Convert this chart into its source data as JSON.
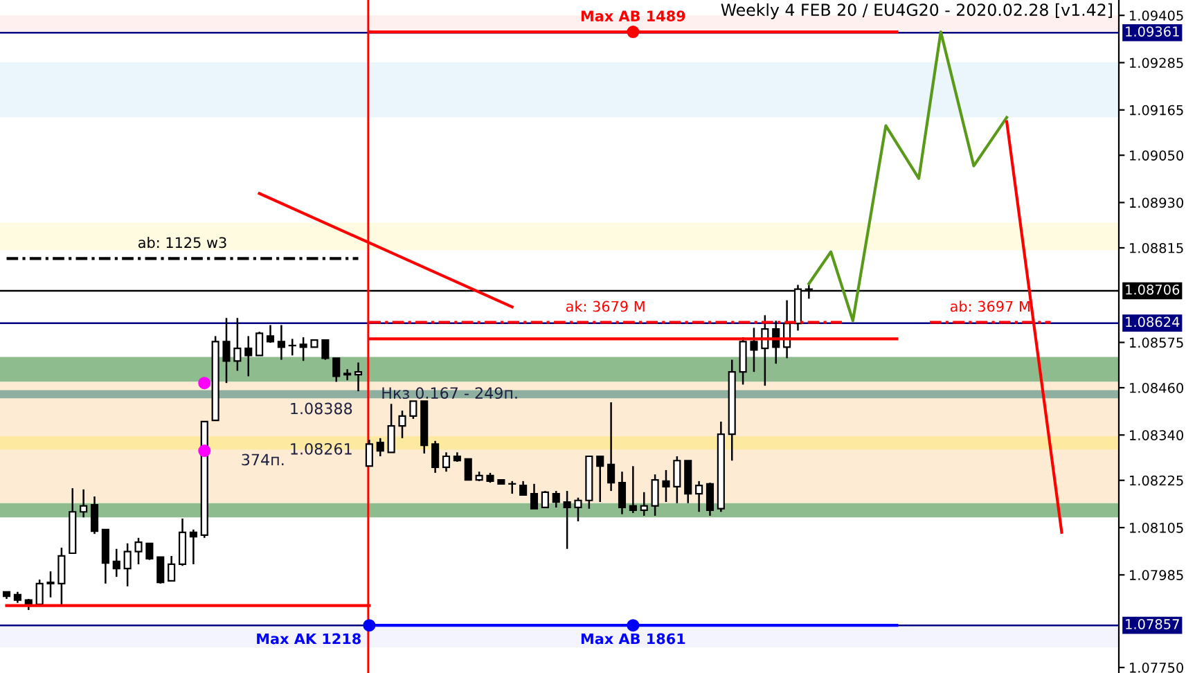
{
  "chart_data": {
    "type": "candlestick",
    "title": "Weekly 4 FEB 20 / EU4G20 - 2020.02.28 [v1.42]",
    "color": "#000000",
    "categories": [
      null,
      null,
      null,
      null,
      null,
      null,
      null,
      null,
      null,
      null,
      null,
      null,
      null,
      null,
      null,
      null,
      null,
      null,
      null,
      null,
      null,
      null,
      null,
      null,
      null,
      null,
      null,
      null,
      null,
      null,
      null,
      null,
      null,
      null,
      null,
      null,
      null,
      null,
      null,
      null,
      null,
      null,
      null,
      null,
      null,
      null,
      null,
      null,
      null,
      null,
      null,
      null,
      null,
      null,
      null,
      null,
      null,
      null,
      null,
      null,
      null,
      null,
      null,
      null,
      null,
      null,
      null,
      null,
      null,
      null,
      null,
      null,
      null,
      null,
      null,
      null,
      null,
      null,
      null,
      null,
      null,
      null,
      null,
      null,
      null,
      null,
      null,
      null,
      null,
      null,
      null,
      null,
      null,
      null,
      null,
      null,
      null,
      null,
      null,
      null,
      null,
      null
    ],
    "ohlc": [
      [
        1.07942,
        1.07942,
        1.07924,
        1.07931
      ],
      [
        1.07935,
        1.07942,
        1.07914,
        1.07921
      ],
      [
        1.07921,
        1.07924,
        1.07896,
        1.07907
      ],
      [
        1.0791,
        1.07973,
        1.0791,
        1.07963
      ],
      [
        1.07966,
        1.07994,
        1.07928,
        1.07963
      ],
      [
        1.07963,
        1.08054,
        1.07907,
        1.08033
      ],
      [
        1.0804,
        1.08205,
        1.0804,
        1.08145
      ],
      [
        1.08145,
        1.08202,
        1.08131,
        1.0816
      ],
      [
        1.08163,
        1.08184,
        1.08089,
        1.08096
      ],
      [
        1.081,
        1.081,
        1.07963,
        1.08015
      ],
      [
        1.08019,
        1.08051,
        1.0798,
        1.08001
      ],
      [
        1.08001,
        1.08065,
        1.07956,
        1.08044
      ],
      [
        1.08044,
        1.08079,
        1.08012,
        1.08068
      ],
      [
        1.08065,
        1.08065,
        1.08023,
        1.08026
      ],
      [
        1.0803,
        1.0803,
        1.07963,
        1.07966
      ],
      [
        1.0797,
        1.08033,
        1.0797,
        1.08012
      ],
      [
        1.08012,
        1.08128,
        1.08008,
        1.08093
      ],
      [
        1.08093,
        1.081,
        1.08012,
        1.08082
      ],
      [
        1.08086,
        1.08374,
        1.08079,
        1.08374
      ],
      [
        1.08377,
        1.08591,
        1.08377,
        1.08577
      ],
      [
        1.08577,
        1.08637,
        1.08472,
        1.08528
      ],
      [
        1.08528,
        1.08637,
        1.08503,
        1.0856
      ],
      [
        1.0856,
        1.08591,
        1.08489,
        1.08542
      ],
      [
        1.08542,
        1.08602,
        1.08542,
        1.08598
      ],
      [
        1.08591,
        1.08619,
        1.08574,
        1.08577
      ],
      [
        1.08577,
        1.08619,
        1.08531,
        1.08563
      ],
      [
        1.08567,
        1.08584,
        1.08542,
        1.08567
      ],
      [
        1.0857,
        1.08588,
        1.08528,
        1.08563
      ],
      [
        1.08563,
        1.08581,
        1.08563,
        1.08581
      ],
      [
        1.08581,
        1.08581,
        1.08531,
        1.08535
      ],
      [
        1.08535,
        1.08535,
        1.08475,
        1.08489
      ],
      [
        1.08496,
        1.08507,
        1.08479,
        1.08493
      ],
      [
        1.08493,
        1.08524,
        1.08451,
        1.085
      ],
      [
        1.08261,
        1.08328,
        1.08261,
        1.08317
      ],
      [
        1.08321,
        1.08332,
        1.08286,
        1.083
      ],
      [
        1.08296,
        1.08419,
        1.08296,
        1.08363
      ],
      [
        1.08363,
        1.08402,
        1.08332,
        1.08388
      ],
      [
        1.08388,
        1.08426,
        1.08381,
        1.08426
      ],
      [
        1.08426,
        1.08426,
        1.08293,
        1.08314
      ],
      [
        1.08317,
        1.08325,
        1.08244,
        1.08258
      ],
      [
        1.08258,
        1.08296,
        1.08247,
        1.08286
      ],
      [
        1.08286,
        1.08296,
        1.08272,
        1.08275
      ],
      [
        1.08279,
        1.08279,
        1.08226,
        1.08226
      ],
      [
        1.08226,
        1.08247,
        1.08223,
        1.08237
      ],
      [
        1.08237,
        1.08244,
        1.08219,
        1.08223
      ],
      [
        1.08226,
        1.08226,
        1.08216,
        1.08216
      ],
      [
        1.08216,
        1.08223,
        1.08191,
        1.08216
      ],
      [
        1.08212,
        1.08223,
        1.08188,
        1.08188
      ],
      [
        1.08191,
        1.08216,
        1.08153,
        1.08153
      ],
      [
        1.08156,
        1.08198,
        1.08156,
        1.08195
      ],
      [
        1.08191,
        1.08198,
        1.08156,
        1.0817
      ],
      [
        1.0817,
        1.08198,
        1.08051,
        1.08156
      ],
      [
        1.08156,
        1.08181,
        1.08121,
        1.08174
      ],
      [
        1.08174,
        1.08286,
        1.08153,
        1.08286
      ],
      [
        1.08286,
        1.08286,
        1.0817,
        1.08261
      ],
      [
        1.08265,
        1.08423,
        1.08198,
        1.08219
      ],
      [
        1.08219,
        1.08247,
        1.08139,
        1.08156
      ],
      [
        1.0816,
        1.08261,
        1.08142,
        1.08149
      ],
      [
        1.08149,
        1.08195,
        1.08135,
        1.0816
      ],
      [
        1.0816,
        1.0824,
        1.08135,
        1.08226
      ],
      [
        1.08223,
        1.08251,
        1.0817,
        1.08209
      ],
      [
        1.08209,
        1.08286,
        1.08167,
        1.08275
      ],
      [
        1.08275,
        1.08275,
        1.08167,
        1.08191
      ],
      [
        1.08191,
        1.08223,
        1.08145,
        1.08212
      ],
      [
        1.08216,
        1.08219,
        1.08135,
        1.08149
      ],
      [
        1.08153,
        1.08374,
        1.08145,
        1.08342
      ],
      [
        1.08342,
        1.08531,
        1.08275,
        1.085
      ],
      [
        1.085,
        1.08588,
        1.08468,
        1.08577
      ],
      [
        1.08577,
        1.08612,
        1.085,
        1.08556
      ],
      [
        1.0856,
        1.08644,
        1.08465,
        1.08609
      ],
      [
        1.08609,
        1.0863,
        1.08521,
        1.08563
      ],
      [
        1.08563,
        1.08682,
        1.08535,
        1.08623
      ],
      [
        1.08623,
        1.08721,
        1.08605,
        1.0871
      ],
      [
        1.0871,
        1.08724,
        1.08686,
        1.0871
      ],
      null,
      null,
      null,
      null,
      null,
      null,
      null,
      null,
      null,
      null,
      null,
      null,
      null,
      null,
      null,
      null,
      null,
      null,
      null,
      null,
      null,
      null,
      null,
      null,
      null,
      null,
      null,
      null
    ],
    "ylim": [
      1.07736,
      1.09444
    ],
    "yticks": [
      {
        "value": 1.09405,
        "label": "1.09405"
      },
      {
        "value": 1.09285,
        "label": "1.09285"
      },
      {
        "value": 1.09165,
        "label": "1.09165"
      },
      {
        "value": 1.0905,
        "label": "1.09050"
      },
      {
        "value": 1.0893,
        "label": "1.08930"
      },
      {
        "value": 1.08815,
        "label": "1.08815"
      },
      {
        "value": 1.08575,
        "label": "1.08575"
      },
      {
        "value": 1.0846,
        "label": "1.08460"
      },
      {
        "value": 1.0834,
        "label": "1.08340"
      },
      {
        "value": 1.08225,
        "label": "1.08225"
      },
      {
        "value": 1.08105,
        "label": "1.08105"
      },
      {
        "value": 1.07985,
        "label": "1.07985"
      },
      {
        "value": 1.0775,
        "label": "1.07750"
      }
    ],
    "tick_labels": "y",
    "grid": false,
    "bands": [
      {
        "axis": "y",
        "from": 1.09146,
        "to": 1.09286,
        "color": "#eaf6fb"
      },
      {
        "axis": "y",
        "from": 1.08809,
        "to": 1.08879,
        "color": "#fffbe0"
      },
      {
        "axis": "y",
        "from": 1.08475,
        "to": 1.08538,
        "color": "#8fbc8f"
      },
      {
        "axis": "y",
        "from": 1.08167,
        "to": 1.08475,
        "color": "#fdebd3"
      },
      {
        "axis": "y",
        "from": 1.08433,
        "to": 1.08454,
        "color": "#8fb0a0"
      },
      {
        "axis": "y",
        "from": 1.08303,
        "to": 1.08337,
        "color": "#fde9a0"
      },
      {
        "axis": "y",
        "from": 1.08131,
        "to": 1.08167,
        "color": "#8fbc8f"
      },
      {
        "axis": "y",
        "from": 1.09363,
        "to": 1.09405,
        "color": "#fff0f0"
      },
      {
        "axis": "y",
        "from": 1.07801,
        "to": 1.07857,
        "color": "#f4f4ff"
      }
    ],
    "ref_lines": [
      {
        "axis": "y",
        "value": 1.09361,
        "label": "1.09361",
        "color": "#000080",
        "line_style": "solid"
      },
      {
        "axis": "y",
        "value": 1.08624,
        "label": "1.08624",
        "color": "#000080",
        "line_style": "solid"
      },
      {
        "axis": "y",
        "value": 1.08706,
        "label": "1.08706",
        "color": "#000000",
        "line_style": "solid"
      },
      {
        "axis": "y",
        "value": 1.07857,
        "label": "1.07857",
        "color": "#000080",
        "line_style": "solid"
      }
    ],
    "series": [
      {
        "type": "line",
        "name": "Max AB 1489",
        "color": "#ff0000",
        "line_style": "solid",
        "values": [
          null,
          null,
          null,
          null,
          null,
          null,
          null,
          null,
          null,
          null,
          null,
          null,
          null,
          null,
          null,
          null,
          null,
          null,
          null,
          null,
          null,
          null,
          null,
          null,
          null,
          null,
          null,
          null,
          null,
          null,
          null,
          null,
          null,
          1.09363,
          1.09363,
          1.09363,
          1.09363,
          1.09363,
          1.09363,
          1.09363,
          1.09363,
          1.09363,
          1.09363,
          1.09363,
          1.09363,
          1.09363,
          1.09363,
          1.09363,
          1.09363,
          1.09363,
          1.09363,
          1.09363,
          1.09363,
          1.09363,
          1.09363,
          1.09363,
          1.09363,
          1.09363,
          1.09363,
          1.09363,
          1.09363,
          1.09363,
          1.09363,
          1.09363,
          1.09363,
          1.09363,
          1.09363,
          1.09363,
          1.09363,
          1.09363,
          1.09363,
          1.09363,
          1.09363,
          1.09363,
          1.09363,
          1.09363,
          1.09363,
          1.09363,
          1.09363,
          1.09363,
          1.09363,
          1.09363,
          null,
          null,
          null,
          null,
          null,
          null,
          null,
          null,
          null,
          null,
          null,
          null,
          null,
          null,
          null,
          null,
          null,
          null,
          null,
          null
        ]
      },
      {
        "type": "scatter",
        "color": "#ff0000",
        "marker": "circle",
        "values": [
          null,
          null,
          null,
          null,
          null,
          null,
          null,
          null,
          null,
          null,
          null,
          null,
          null,
          null,
          null,
          null,
          null,
          null,
          null,
          null,
          null,
          null,
          null,
          null,
          null,
          null,
          null,
          null,
          null,
          null,
          null,
          null,
          null,
          null,
          null,
          null,
          null,
          null,
          null,
          null,
          null,
          null,
          null,
          null,
          null,
          null,
          null,
          null,
          null,
          null,
          null,
          null,
          null,
          null,
          null,
          null,
          null,
          1.09363,
          null,
          null,
          null,
          null,
          null,
          null,
          null,
          null,
          null,
          null,
          null,
          null,
          null,
          null,
          null,
          null,
          null,
          null,
          null,
          null,
          null,
          null,
          null,
          null,
          null,
          null,
          null,
          null,
          null,
          null,
          null,
          null,
          null,
          null,
          null,
          null,
          null,
          null,
          null,
          null,
          null,
          null,
          null,
          null
        ]
      },
      {
        "type": "line",
        "color": "#ff0000",
        "line_style": "solid",
        "values": [
          null,
          null,
          null,
          null,
          null,
          null,
          null,
          null,
          null,
          null,
          null,
          null,
          null,
          null,
          null,
          null,
          null,
          null,
          null,
          null,
          null,
          null,
          null,
          null,
          null,
          null,
          null,
          null,
          null,
          null,
          null,
          null,
          null,
          1.08584,
          1.08584,
          1.08584,
          1.08584,
          1.08584,
          1.08584,
          1.08584,
          1.08584,
          1.08584,
          1.08584,
          1.08584,
          1.08584,
          1.08584,
          1.08584,
          1.08584,
          1.08584,
          1.08584,
          1.08584,
          1.08584,
          1.08584,
          1.08584,
          1.08584,
          1.08584,
          1.08584,
          1.08584,
          1.08584,
          1.08584,
          1.08584,
          1.08584,
          1.08584,
          1.08584,
          1.08584,
          1.08584,
          1.08584,
          1.08584,
          1.08584,
          1.08584,
          1.08584,
          1.08584,
          1.08584,
          1.08584,
          1.08584,
          1.08584,
          1.08584,
          1.08584,
          1.08584,
          1.08584,
          1.08584,
          1.08584,
          null,
          null,
          null,
          null,
          null,
          null,
          null,
          null,
          null,
          null,
          null,
          null,
          null,
          null,
          null,
          null,
          null,
          null,
          null,
          null
        ]
      },
      {
        "type": "line",
        "color": "#ff0000",
        "line_style": "solid",
        "values": [
          1.07907,
          1.07907,
          1.07907,
          1.07907,
          1.07907,
          1.07907,
          1.07907,
          1.07907,
          1.07907,
          1.07907,
          1.07907,
          1.07907,
          1.07907,
          1.07907,
          1.07907,
          1.07907,
          1.07907,
          1.07907,
          1.07907,
          1.07907,
          1.07907,
          1.07907,
          1.07907,
          1.07907,
          1.07907,
          1.07907,
          1.07907,
          1.07907,
          1.07907,
          1.07907,
          1.07907,
          1.07907,
          1.07907,
          1.07907,
          null,
          null,
          null,
          null,
          null,
          null,
          null,
          null,
          null,
          null,
          null,
          null,
          null,
          null,
          null,
          null,
          null,
          null,
          null,
          null,
          null,
          null,
          null,
          null,
          null,
          null,
          null,
          null,
          null,
          null,
          null,
          null,
          null,
          null,
          null,
          null,
          null,
          null,
          null,
          null,
          null,
          null,
          null,
          null,
          null,
          null,
          null,
          null,
          null,
          null,
          null,
          null,
          null,
          null,
          null,
          null,
          null,
          null,
          null,
          null,
          null,
          null,
          null,
          null,
          null,
          null,
          null,
          null
        ]
      },
      {
        "type": "line",
        "name": "ab: 1125 w3",
        "color": "#000000",
        "line_style": "dashed",
        "values": [
          1.08788,
          1.08788,
          1.08788,
          1.08788,
          1.08788,
          1.08788,
          1.08788,
          1.08788,
          1.08788,
          1.08788,
          1.08788,
          1.08788,
          1.08788,
          1.08788,
          1.08788,
          1.08788,
          1.08788,
          1.08788,
          1.08788,
          1.08788,
          1.08788,
          1.08788,
          1.08788,
          1.08788,
          1.08788,
          1.08788,
          1.08788,
          1.08788,
          1.08788,
          1.08788,
          1.08788,
          1.08788,
          1.08788,
          null,
          null,
          null,
          null,
          null,
          null,
          null,
          null,
          null,
          null,
          null,
          null,
          null,
          null,
          null,
          null,
          null,
          null,
          null,
          null,
          null,
          null,
          null,
          null,
          null,
          null,
          null,
          null,
          null,
          null,
          null,
          null,
          null,
          null,
          null,
          null,
          null,
          null,
          null,
          null,
          null,
          null,
          null,
          null,
          null,
          null,
          null,
          null,
          null,
          null,
          null,
          null,
          null,
          null,
          null,
          null,
          null,
          null,
          null,
          null,
          null,
          null,
          null,
          null,
          null,
          null,
          null,
          null,
          null
        ]
      },
      {
        "type": "line",
        "name": "ak: 3679 M",
        "color": "#ff0000",
        "line_style": "dashed",
        "values": [
          null,
          null,
          null,
          null,
          null,
          null,
          null,
          null,
          null,
          null,
          null,
          null,
          null,
          null,
          null,
          null,
          null,
          null,
          null,
          null,
          null,
          null,
          null,
          null,
          null,
          null,
          null,
          null,
          null,
          null,
          null,
          null,
          null,
          1.08626,
          1.08626,
          1.08626,
          1.08626,
          1.08626,
          1.08626,
          1.08626,
          1.08626,
          1.08626,
          1.08626,
          1.08626,
          1.08626,
          1.08626,
          1.08626,
          1.08626,
          1.08626,
          1.08626,
          1.08626,
          1.08626,
          1.08626,
          1.08626,
          1.08626,
          1.08626,
          1.08626,
          1.08626,
          1.08626,
          1.08626,
          1.08626,
          1.08626,
          1.08626,
          1.08626,
          1.08626,
          1.08626,
          1.08626,
          1.08626,
          1.08626,
          1.08626,
          1.08626,
          1.08626,
          1.08626,
          1.08626,
          1.08626,
          1.08626,
          1.08626,
          null,
          null,
          null,
          null,
          null,
          null,
          null,
          null,
          null,
          null,
          null,
          null,
          null,
          null,
          null,
          null,
          null,
          null,
          null,
          null,
          null,
          null,
          null,
          null,
          null
        ]
      },
      {
        "type": "line",
        "name": "ab: 3697 M",
        "color": "#ff0000",
        "line_style": "dashed",
        "values": [
          null,
          null,
          null,
          null,
          null,
          null,
          null,
          null,
          null,
          null,
          null,
          null,
          null,
          null,
          null,
          null,
          null,
          null,
          null,
          null,
          null,
          null,
          null,
          null,
          null,
          null,
          null,
          null,
          null,
          null,
          null,
          null,
          null,
          null,
          null,
          null,
          null,
          null,
          null,
          null,
          null,
          null,
          null,
          null,
          null,
          null,
          null,
          null,
          null,
          null,
          null,
          null,
          null,
          null,
          null,
          null,
          null,
          null,
          null,
          null,
          null,
          null,
          null,
          null,
          null,
          null,
          null,
          null,
          null,
          null,
          null,
          null,
          null,
          null,
          null,
          null,
          null,
          null,
          null,
          null,
          null,
          null,
          null,
          null,
          1.08626,
          1.08626,
          1.08626,
          1.08626,
          1.08626,
          1.08626,
          1.08626,
          1.08626,
          1.08626,
          1.08626,
          1.08626,
          1.08626,
          null,
          null,
          null,
          null,
          null,
          null
        ]
      },
      {
        "type": "scatter",
        "name": "Max AK 1218",
        "color": "#0000ff",
        "marker": "circle",
        "values": [
          null,
          null,
          null,
          null,
          null,
          null,
          null,
          null,
          null,
          null,
          null,
          null,
          null,
          null,
          null,
          null,
          null,
          null,
          null,
          null,
          null,
          null,
          null,
          null,
          null,
          null,
          null,
          null,
          null,
          null,
          null,
          null,
          null,
          1.07857,
          null,
          null,
          null,
          null,
          null,
          null,
          null,
          null,
          null,
          null,
          null,
          null,
          null,
          null,
          null,
          null,
          null,
          null,
          null,
          null,
          null,
          null,
          null,
          null,
          null,
          null,
          null,
          null,
          null,
          null,
          null,
          null,
          null,
          null,
          null,
          null,
          null,
          null,
          null,
          null,
          null,
          null,
          null,
          null,
          null,
          null,
          null,
          null,
          null,
          null,
          null,
          null,
          null,
          null,
          null,
          null,
          null,
          null,
          null,
          null,
          null,
          null,
          null,
          null,
          null,
          null,
          null,
          null
        ]
      },
      {
        "type": "line",
        "name": "Max AB 1861",
        "color": "#0000ff",
        "line_style": "solid",
        "values": [
          null,
          null,
          null,
          null,
          null,
          null,
          null,
          null,
          null,
          null,
          null,
          null,
          null,
          null,
          null,
          null,
          null,
          null,
          null,
          null,
          null,
          null,
          null,
          null,
          null,
          null,
          null,
          null,
          null,
          null,
          null,
          null,
          null,
          1.07857,
          1.07857,
          1.07857,
          1.07857,
          1.07857,
          1.07857,
          1.07857,
          1.07857,
          1.07857,
          1.07857,
          1.07857,
          1.07857,
          1.07857,
          1.07857,
          1.07857,
          1.07857,
          1.07857,
          1.07857,
          1.07857,
          1.07857,
          1.07857,
          1.07857,
          1.07857,
          1.07857,
          1.07857,
          1.07857,
          1.07857,
          1.07857,
          1.07857,
          1.07857,
          1.07857,
          1.07857,
          1.07857,
          1.07857,
          1.07857,
          1.07857,
          1.07857,
          1.07857,
          1.07857,
          1.07857,
          1.07857,
          1.07857,
          1.07857,
          1.07857,
          1.07857,
          1.07857,
          1.07857,
          1.07857,
          1.07857,
          null,
          null,
          null,
          null,
          null,
          null,
          null,
          null,
          null,
          null,
          null,
          null,
          null,
          null,
          null,
          null,
          null,
          null,
          null,
          null
        ]
      },
      {
        "type": "scatter",
        "color": "#0000ff",
        "marker": "circle",
        "values": [
          null,
          null,
          null,
          null,
          null,
          null,
          null,
          null,
          null,
          null,
          null,
          null,
          null,
          null,
          null,
          null,
          null,
          null,
          null,
          null,
          null,
          null,
          null,
          null,
          null,
          null,
          null,
          null,
          null,
          null,
          null,
          null,
          null,
          null,
          null,
          null,
          null,
          null,
          null,
          null,
          null,
          null,
          null,
          null,
          null,
          null,
          null,
          null,
          null,
          null,
          null,
          null,
          null,
          null,
          null,
          null,
          null,
          1.07857,
          null,
          null,
          null,
          null,
          null,
          null,
          null,
          null,
          null,
          null,
          null,
          null,
          null,
          null,
          null,
          null,
          null,
          null,
          null,
          null,
          null,
          null,
          null,
          null,
          null,
          null,
          null,
          null,
          null,
          null,
          null,
          null,
          null,
          null,
          null,
          null,
          null,
          null,
          null,
          null,
          null,
          null,
          null,
          null
        ]
      },
      {
        "type": "scatter",
        "color": "#ff00ff",
        "marker": "circle",
        "values": [
          null,
          null,
          null,
          null,
          null,
          null,
          null,
          null,
          null,
          null,
          null,
          null,
          null,
          null,
          null,
          null,
          null,
          null,
          1.08472,
          null,
          null,
          null,
          null,
          null,
          null,
          null,
          null,
          null,
          null,
          null,
          null,
          null,
          null,
          null,
          null,
          null,
          null,
          null,
          null,
          null,
          null,
          null,
          null,
          null,
          null,
          null,
          null,
          null,
          null,
          null,
          null,
          null,
          null,
          null,
          null,
          null,
          null,
          null,
          null,
          null,
          null,
          null,
          null,
          null,
          null,
          null,
          null,
          null,
          null,
          null,
          null,
          null,
          null,
          null,
          null,
          null,
          null,
          null,
          null,
          null,
          null,
          null,
          null,
          null,
          null,
          null,
          null,
          null,
          null,
          null,
          null,
          null,
          null,
          null,
          null,
          null,
          null,
          null,
          null,
          null,
          null,
          null
        ]
      },
      {
        "type": "scatter",
        "color": "#ff00ff",
        "marker": "circle",
        "values": [
          null,
          null,
          null,
          null,
          null,
          null,
          null,
          null,
          null,
          null,
          null,
          null,
          null,
          null,
          null,
          null,
          null,
          null,
          1.083,
          null,
          null,
          null,
          null,
          null,
          null,
          null,
          null,
          null,
          null,
          null,
          null,
          null,
          null,
          null,
          null,
          null,
          null,
          null,
          null,
          null,
          null,
          null,
          null,
          null,
          null,
          null,
          null,
          null,
          null,
          null,
          null,
          null,
          null,
          null,
          null,
          null,
          null,
          null,
          null,
          null,
          null,
          null,
          null,
          null,
          null,
          null,
          null,
          null,
          null,
          null,
          null,
          null,
          null,
          null,
          null,
          null,
          null,
          null,
          null,
          null,
          null,
          null,
          null,
          null,
          null,
          null,
          null,
          null,
          null,
          null,
          null,
          null,
          null,
          null,
          null,
          null,
          null,
          null,
          null,
          null,
          null,
          null
        ]
      },
      {
        "type": "line",
        "color": "#5a9a1a",
        "line_style": "solid",
        "values": [
          null,
          null,
          null,
          null,
          null,
          null,
          null,
          null,
          null,
          null,
          null,
          null,
          null,
          null,
          null,
          null,
          null,
          null,
          null,
          null,
          null,
          null,
          null,
          null,
          null,
          null,
          null,
          null,
          null,
          null,
          null,
          null,
          null,
          null,
          null,
          null,
          null,
          null,
          null,
          null,
          null,
          null,
          null,
          null,
          null,
          null,
          null,
          null,
          null,
          null,
          null,
          null,
          null,
          null,
          null,
          null,
          null,
          null,
          null,
          null,
          null,
          null,
          null,
          null,
          null,
          null,
          null,
          null,
          null,
          null,
          null,
          null,
          null,
          1.08724,
          null,
          1.08805,
          null,
          1.0863,
          null,
          null,
          1.09125,
          null,
          null,
          1.08991,
          null,
          1.09363,
          null,
          null,
          1.09023,
          null,
          null,
          1.09146,
          null,
          null,
          null,
          null,
          null,
          null,
          null,
          null,
          null,
          null
        ]
      },
      {
        "type": "line",
        "color": "#ff0000",
        "line_style": "solid",
        "values": [
          null,
          null,
          null,
          null,
          null,
          null,
          null,
          null,
          null,
          null,
          null,
          null,
          null,
          null,
          null,
          null,
          null,
          null,
          null,
          null,
          null,
          null,
          null,
          null,
          null,
          null,
          null,
          null,
          null,
          null,
          null,
          null,
          null,
          null,
          null,
          null,
          null,
          null,
          null,
          null,
          null,
          null,
          null,
          null,
          null,
          null,
          null,
          null,
          null,
          null,
          null,
          null,
          null,
          null,
          null,
          null,
          null,
          null,
          null,
          null,
          null,
          null,
          null,
          null,
          null,
          null,
          null,
          null,
          null,
          null,
          null,
          null,
          null,
          null,
          null,
          null,
          null,
          null,
          null,
          null,
          null,
          null,
          null,
          null,
          null,
          null,
          null,
          null,
          null,
          null,
          null,
          1.09135,
          null,
          null,
          null,
          null,
          1.08093,
          null,
          null,
          null,
          null,
          null
        ]
      },
      {
        "type": "line",
        "color": "#ff0000",
        "line_style": "solid",
        "values": [
          null,
          null,
          null,
          null,
          null,
          null,
          null,
          null,
          null,
          null,
          null,
          null,
          null,
          null,
          null,
          null,
          null,
          null,
          null,
          null,
          null,
          null,
          null,
          1.08953,
          null,
          null,
          null,
          null,
          null,
          null,
          null,
          null,
          null,
          null,
          null,
          null,
          null,
          null,
          null,
          null,
          null,
          null,
          null,
          null,
          null,
          null,
          1.08665,
          null,
          null,
          null,
          null,
          null,
          null,
          null,
          null,
          null,
          null,
          null,
          null,
          null,
          null,
          null,
          null,
          null,
          null,
          null,
          null,
          null,
          null,
          null,
          null,
          null,
          null,
          null,
          null,
          null,
          null,
          null,
          null,
          null,
          null,
          null,
          null,
          null,
          null,
          null,
          null,
          null,
          null,
          null,
          null,
          null,
          null,
          null,
          null,
          null,
          null,
          null,
          null,
          null,
          null,
          null
        ]
      }
    ],
    "annotations": [
      "Нкз 0.167 - 249п.",
      "374п.",
      "1.08388",
      "1.08261"
    ]
  }
}
